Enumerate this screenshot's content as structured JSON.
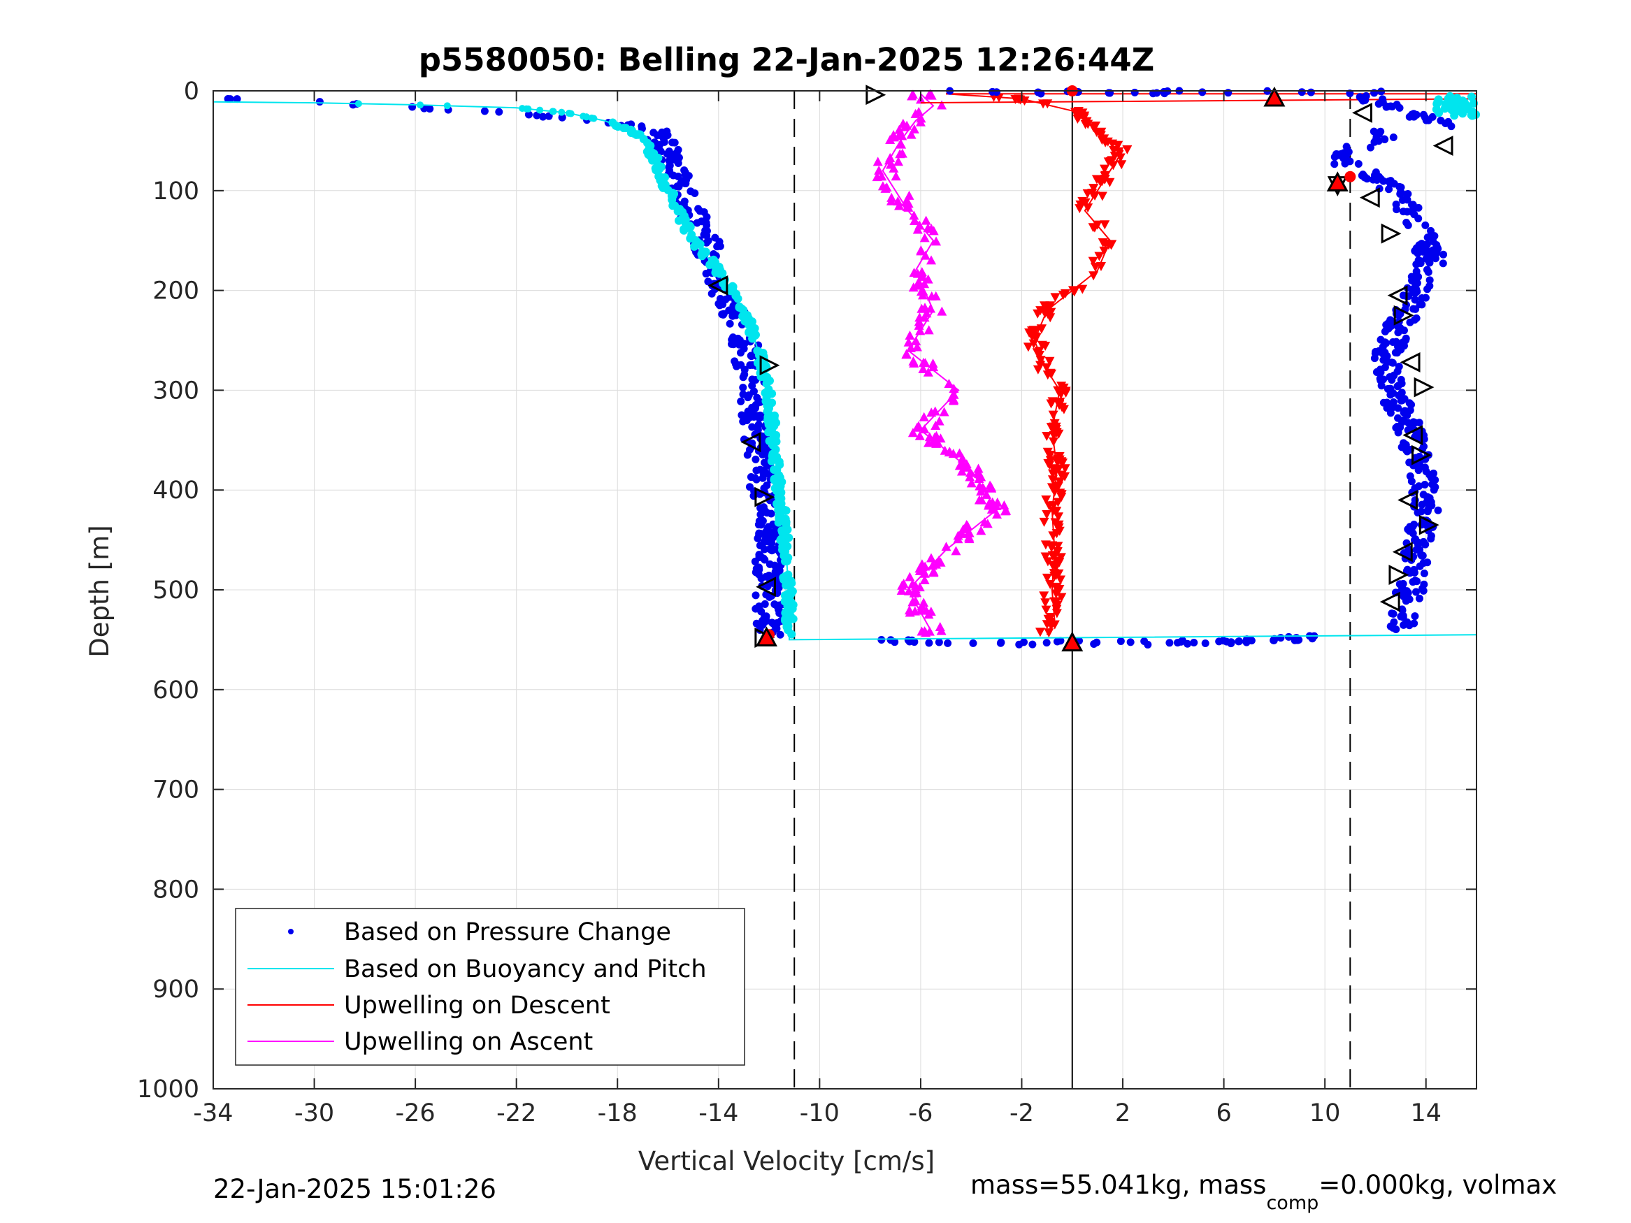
{
  "chart_data": {
    "type": "scatter",
    "title": "p5580050: Belling 22-Jan-2025 12:26:44Z",
    "xlabel": "Vertical Velocity [cm/s]",
    "ylabel": "Depth [m]",
    "xlim": [
      -34,
      16
    ],
    "ylim": [
      0,
      1000
    ],
    "y_reversed": true,
    "grid": true,
    "x_ticks": [
      -34,
      -30,
      -26,
      -22,
      -18,
      -14,
      -10,
      -6,
      -2,
      2,
      6,
      10,
      14
    ],
    "x_tick_labels": [
      "-34",
      "-30",
      "-26",
      "-22",
      "-18",
      "-14",
      "-10",
      "-6",
      "-2",
      "2",
      "6",
      "10",
      "14"
    ],
    "y_ticks": [
      0,
      100,
      200,
      300,
      400,
      500,
      600,
      700,
      800,
      900,
      1000
    ],
    "y_tick_labels": [
      "0",
      "100",
      "200",
      "300",
      "400",
      "500",
      "600",
      "700",
      "800",
      "900",
      "1000"
    ],
    "reference_lines": [
      {
        "x": -11,
        "style": "dashed"
      },
      {
        "x": 11,
        "style": "dashed"
      },
      {
        "x": 0,
        "style": "solid"
      }
    ],
    "legend_position": "bottom-left",
    "series": [
      {
        "name": "Based on Pressure Change",
        "marker": "dot",
        "color": "#0000ee",
        "branches": [
          {
            "x": [
              -33.5,
              -31,
              -28,
              -25,
              -22.5,
              -20,
              -18,
              -16.5,
              -16,
              -15.5,
              -14.5,
              -14.2,
              -14,
              -13.5,
              -13,
              -12.6,
              -12.5,
              -12.3,
              -12.1,
              -12,
              -12,
              -12.1
            ],
            "y": [
              8,
              10,
              14,
              18,
              22,
              27,
              32,
              40,
              60,
              100,
              150,
              180,
              200,
              220,
              250,
              300,
              340,
              380,
              420,
              470,
              510,
              545
            ]
          },
          {
            "x": [
              13,
              13.3,
              13.5,
              13.7,
              14,
              13.9,
              13.6,
              13.2,
              12.6,
              12.4,
              12.8,
              13.5,
              13.8,
              14.2,
              14,
              13.6,
              13.2,
              12.8,
              12.5,
              12.2,
              11.5,
              10.5,
              11,
              12,
              12.5,
              15,
              13,
              11.5
            ],
            "y": [
              540,
              510,
              480,
              450,
              420,
              390,
              360,
              330,
              300,
              270,
              240,
              210,
              190,
              170,
              150,
              130,
              115,
              100,
              95,
              90,
              80,
              70,
              60,
              50,
              40,
              35,
              20,
              5
            ]
          }
        ],
        "surface_x": [
          -11.5,
          -7.5,
          -4,
          -2,
          0,
          2,
          4,
          6,
          8,
          10,
          11
        ],
        "surface_y": [
          548,
          552,
          553,
          553,
          553,
          553,
          553,
          552,
          550,
          547,
          545
        ]
      },
      {
        "name": "Based on Buoyancy and Pitch",
        "marker": "line",
        "color": "#00e5ee",
        "x": [
          -34,
          -30,
          -26,
          -22,
          -20,
          -18.5,
          -17,
          -16.5,
          -16,
          -15,
          -14,
          -13.5,
          -12.8,
          -12.2,
          -11.9,
          -11.7,
          -11.5,
          -11.3,
          -11.2,
          -11.2,
          -11.2,
          16
        ],
        "y": [
          11,
          12,
          14,
          17,
          22,
          30,
          45,
          70,
          100,
          150,
          180,
          200,
          230,
          280,
          330,
          380,
          420,
          470,
          520,
          545,
          550,
          545
        ],
        "surface_x": [
          14.5,
          15,
          15.5,
          16
        ],
        "surface_y": [
          10,
          15,
          20,
          12
        ]
      },
      {
        "name": "Upwelling on Descent",
        "marker": "triangle-down",
        "color": "#ff0000",
        "x": [
          -5,
          -2,
          0,
          1,
          2,
          1.5,
          1,
          0.5,
          1.5,
          1,
          0,
          -1,
          -1.5,
          -1,
          -0.5,
          -0.8,
          -0.6,
          -0.8,
          -0.7,
          -0.8,
          -0.7,
          -1
        ],
        "y": [
          3,
          8,
          20,
          40,
          60,
          80,
          100,
          120,
          150,
          180,
          200,
          220,
          250,
          280,
          300,
          340,
          380,
          420,
          460,
          500,
          530,
          545
        ]
      },
      {
        "name": "Upwelling on Ascent",
        "marker": "triangle-up",
        "color": "#ff00ff",
        "x": [
          -5.5,
          -6.5,
          -5,
          -3,
          -4,
          -6,
          -4.5,
          -6.5,
          -5.5,
          -6.2,
          -5.5,
          -6.5,
          -7.5,
          -6.8,
          -6.2,
          -5.5,
          -5.8,
          -6
        ],
        "y": [
          545,
          500,
          460,
          420,
          380,
          340,
          300,
          260,
          220,
          180,
          150,
          120,
          80,
          50,
          30,
          15,
          8,
          3
        ]
      }
    ],
    "markers": {
      "open_triangles": [
        {
          "x": -7.8,
          "y": 4,
          "dir": "right"
        },
        {
          "x": -14,
          "y": 195,
          "dir": "left"
        },
        {
          "x": -12,
          "y": 275,
          "dir": "right"
        },
        {
          "x": -12.7,
          "y": 352,
          "dir": "left"
        },
        {
          "x": -12.2,
          "y": 407,
          "dir": "right"
        },
        {
          "x": -12.1,
          "y": 497,
          "dir": "left"
        },
        {
          "x": -12.2,
          "y": 548,
          "dir": "right"
        },
        {
          "x": 10.5,
          "y": 95,
          "dir": "down"
        },
        {
          "x": 11.5,
          "y": 22,
          "dir": "left"
        },
        {
          "x": 14.7,
          "y": 55,
          "dir": "left"
        },
        {
          "x": 11.8,
          "y": 107,
          "dir": "left"
        },
        {
          "x": 12.6,
          "y": 143,
          "dir": "right"
        },
        {
          "x": 12.9,
          "y": 205,
          "dir": "left"
        },
        {
          "x": 13.1,
          "y": 225,
          "dir": "right"
        },
        {
          "x": 13.4,
          "y": 272,
          "dir": "left"
        },
        {
          "x": 13.9,
          "y": 297,
          "dir": "right"
        },
        {
          "x": 13.5,
          "y": 345,
          "dir": "left"
        },
        {
          "x": 13.8,
          "y": 365,
          "dir": "right"
        },
        {
          "x": 13.3,
          "y": 410,
          "dir": "left"
        },
        {
          "x": 14.1,
          "y": 435,
          "dir": "right"
        },
        {
          "x": 13.1,
          "y": 462,
          "dir": "left"
        },
        {
          "x": 12.9,
          "y": 485,
          "dir": "right"
        },
        {
          "x": 12.6,
          "y": 512,
          "dir": "left"
        }
      ],
      "red_triangles": [
        {
          "x": 8,
          "y": 7
        },
        {
          "x": 0,
          "y": 553
        },
        {
          "x": -12.1,
          "y": 548
        },
        {
          "x": 10.5,
          "y": 92
        }
      ],
      "red_dots": [
        {
          "x": 11,
          "y": 86
        },
        {
          "x": -12,
          "y": 545
        },
        {
          "x": 0,
          "y": 0
        }
      ]
    }
  },
  "footer": {
    "timestamp": "22-Jan-2025 15:01:26",
    "mass_prefix": "mass=55.041kg, mass",
    "mass_sub": "comp",
    "mass_suffix": "=0.000kg, volmax"
  }
}
